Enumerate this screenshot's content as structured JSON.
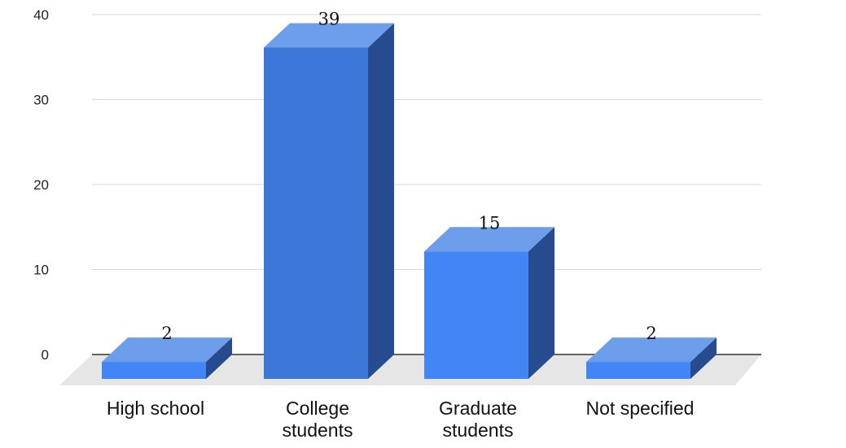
{
  "chart_data": {
    "type": "bar",
    "style": "3d-column",
    "categories": [
      "High school",
      "College students",
      "Graduate students",
      "Not specified"
    ],
    "category_lines": [
      [
        "High school"
      ],
      [
        "College",
        "students"
      ],
      [
        "Graduate",
        "students"
      ],
      [
        "Not specified"
      ]
    ],
    "values": [
      2,
      39,
      15,
      2
    ],
    "data_labels": [
      "2",
      "39",
      "15",
      "2"
    ],
    "yticks": [
      "0",
      "10",
      "20",
      "30",
      "40"
    ],
    "ylim": [
      0,
      40
    ],
    "grid": true,
    "legend": "none",
    "title": "",
    "xlabel": "",
    "ylabel": "",
    "colors": {
      "front": [
        "#4285f4",
        "#3c78d8",
        "#4285f4",
        "#4285f4"
      ],
      "top": "#6d9eeb",
      "side": "#274b8f",
      "floor": "#e6e6e6",
      "grid": "#d9d9d9",
      "axis": "#333333"
    }
  }
}
